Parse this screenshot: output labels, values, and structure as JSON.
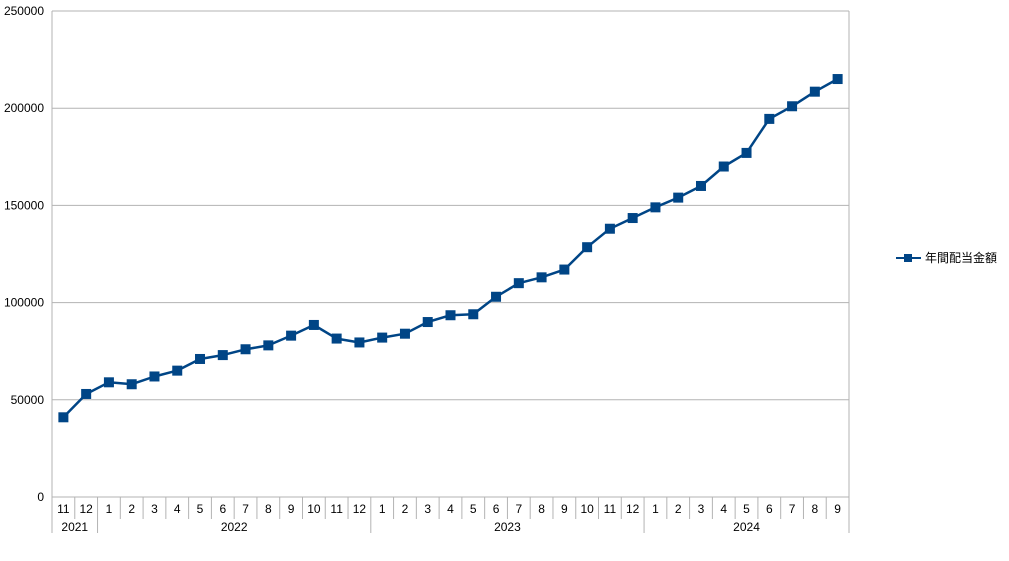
{
  "chart_data": {
    "type": "line",
    "title": "",
    "xlabel": "",
    "ylabel": "",
    "ylim": [
      0,
      250000
    ],
    "yticks": [
      "0",
      "50000",
      "100000",
      "150000",
      "200000",
      "250000"
    ],
    "grid": true,
    "legend_position": "right",
    "categories": [
      {
        "year": "2021",
        "month": "11"
      },
      {
        "year": "2021",
        "month": "12"
      },
      {
        "year": "2022",
        "month": "1"
      },
      {
        "year": "2022",
        "month": "2"
      },
      {
        "year": "2022",
        "month": "3"
      },
      {
        "year": "2022",
        "month": "4"
      },
      {
        "year": "2022",
        "month": "5"
      },
      {
        "year": "2022",
        "month": "6"
      },
      {
        "year": "2022",
        "month": "7"
      },
      {
        "year": "2022",
        "month": "8"
      },
      {
        "year": "2022",
        "month": "9"
      },
      {
        "year": "2022",
        "month": "10"
      },
      {
        "year": "2022",
        "month": "11"
      },
      {
        "year": "2022",
        "month": "12"
      },
      {
        "year": "2023",
        "month": "1"
      },
      {
        "year": "2023",
        "month": "2"
      },
      {
        "year": "2023",
        "month": "3"
      },
      {
        "year": "2023",
        "month": "4"
      },
      {
        "year": "2023",
        "month": "5"
      },
      {
        "year": "2023",
        "month": "6"
      },
      {
        "year": "2023",
        "month": "7"
      },
      {
        "year": "2023",
        "month": "8"
      },
      {
        "year": "2023",
        "month": "9"
      },
      {
        "year": "2023",
        "month": "10"
      },
      {
        "year": "2023",
        "month": "11"
      },
      {
        "year": "2023",
        "month": "12"
      },
      {
        "year": "2024",
        "month": "1"
      },
      {
        "year": "2024",
        "month": "2"
      },
      {
        "year": "2024",
        "month": "3"
      },
      {
        "year": "2024",
        "month": "4"
      },
      {
        "year": "2024",
        "month": "5"
      },
      {
        "year": "2024",
        "month": "6"
      },
      {
        "year": "2024",
        "month": "7"
      },
      {
        "year": "2024",
        "month": "8"
      },
      {
        "year": "2024",
        "month": "9"
      }
    ],
    "years": [
      "2021",
      "2022",
      "2023",
      "2024"
    ],
    "series": [
      {
        "name": "年間配当金額",
        "color": "#004586",
        "marker": "square",
        "values": [
          41000,
          53000,
          59000,
          58000,
          62000,
          65000,
          71000,
          73000,
          76000,
          78000,
          83000,
          88500,
          81500,
          79500,
          82000,
          84000,
          90000,
          93500,
          94000,
          103000,
          110000,
          113000,
          117000,
          128500,
          138000,
          143500,
          149000,
          154000,
          160000,
          170000,
          177000,
          194500,
          201000,
          208500,
          215000
        ]
      }
    ]
  }
}
